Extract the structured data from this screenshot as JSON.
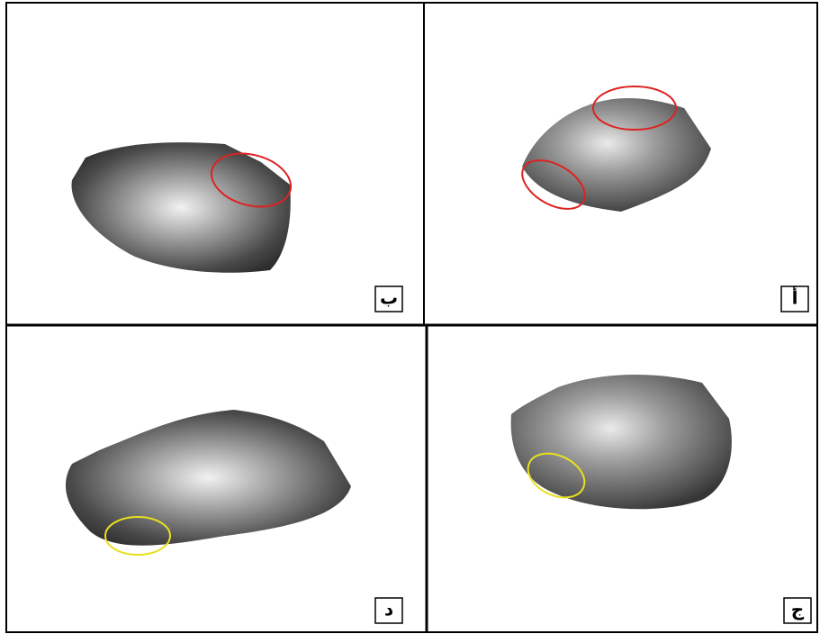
{
  "panels": [
    {
      "label": "ب"
    },
    {
      "label": "أ"
    },
    {
      "label": "د"
    },
    {
      "label": "ج"
    }
  ]
}
